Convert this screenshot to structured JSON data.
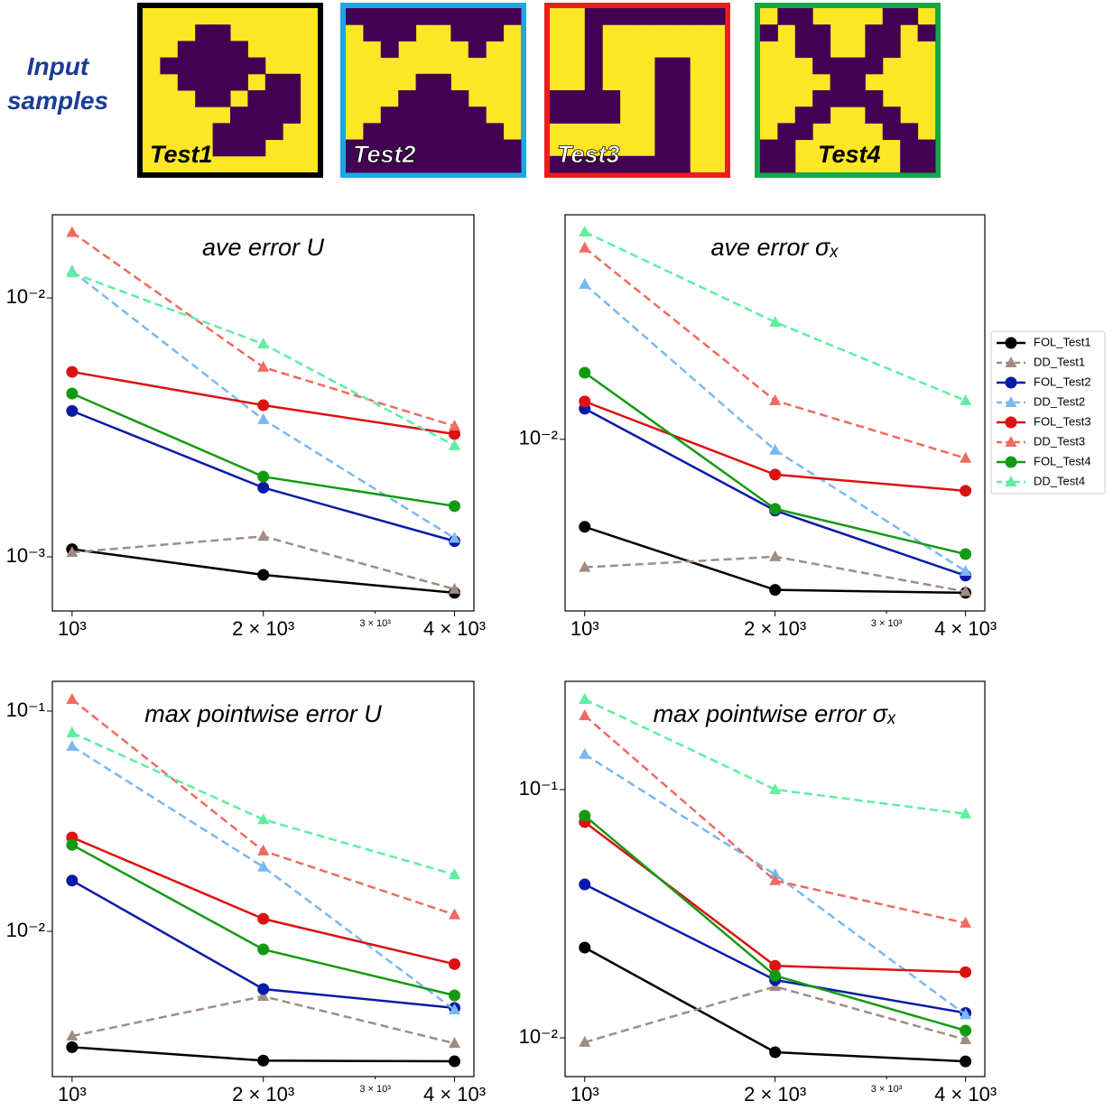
{
  "header": {
    "title": "Input samples",
    "samples": [
      "Test1",
      "Test2",
      "Test3",
      "Test4"
    ]
  },
  "chart_data": [
    {
      "type": "line",
      "title": "ave error U",
      "x": [
        1000,
        2000,
        4000
      ],
      "xscale": "log",
      "yscale": "log",
      "xlim": [
        931,
        4291
      ],
      "ylim": [
        0.000618,
        0.02094
      ],
      "xticks": [
        {
          "value": 1000,
          "label": "10³"
        },
        {
          "value": 2000,
          "label": "2 × 10³"
        },
        {
          "value": 4000,
          "label": "4 × 10³"
        }
      ],
      "xticks_minor": [
        {
          "value": 3000,
          "label": "3 × 10³"
        }
      ],
      "yticks": [
        {
          "value": 0.01,
          "label": "10⁻²"
        },
        {
          "value": 0.001,
          "label": "10⁻³"
        }
      ],
      "series": [
        {
          "color": "#000000",
          "linestyle": "solid",
          "marker": "circle",
          "values": [
            0.00107,
            0.000852,
            0.000726
          ]
        },
        {
          "color": "#a08c85",
          "linestyle": "dashed",
          "marker": "triangle",
          "values": [
            0.00104,
            0.0012,
            0.00075
          ]
        },
        {
          "color": "#0a1aa8",
          "linestyle": "solid",
          "marker": "circle",
          "values": [
            0.00366,
            0.00185,
            0.00115
          ]
        },
        {
          "color": "#7ab8f0",
          "linestyle": "dashed",
          "marker": "triangle",
          "values": [
            0.0127,
            0.00339,
            0.00118
          ]
        },
        {
          "color": "#dd1111",
          "linestyle": "solid",
          "marker": "circle",
          "values": [
            0.00518,
            0.00385,
            0.00298
          ]
        },
        {
          "color": "#f06a60",
          "linestyle": "dashed",
          "marker": "triangle",
          "values": [
            0.0179,
            0.0054,
            0.0032
          ]
        },
        {
          "color": "#139a13",
          "linestyle": "solid",
          "marker": "circle",
          "values": [
            0.00427,
            0.00204,
            0.00157
          ]
        },
        {
          "color": "#5cf0a0",
          "linestyle": "dashed",
          "marker": "triangle",
          "values": [
            0.0125,
            0.00664,
            0.00269
          ]
        }
      ]
    },
    {
      "type": "line",
      "title": "ave error σₓ",
      "x": [
        1000,
        2000,
        4000
      ],
      "xscale": "log",
      "yscale": "log",
      "xlim": [
        931,
        4291
      ],
      "ylim": [
        0.0024,
        0.0647
      ],
      "legend": "outside right",
      "xticks": [
        {
          "value": 1000,
          "label": "10³"
        },
        {
          "value": 2000,
          "label": "2 × 10³"
        },
        {
          "value": 4000,
          "label": "4 × 10³"
        }
      ],
      "xticks_minor": [
        {
          "value": 3000,
          "label": "3 × 10³"
        }
      ],
      "yticks": [
        {
          "value": 0.01,
          "label": "10⁻²"
        }
      ],
      "series": [
        {
          "name": "FOL_Test1",
          "color": "#000000",
          "linestyle": "solid",
          "marker": "circle",
          "values": [
            0.00483,
            0.00286,
            0.00279
          ]
        },
        {
          "name": "DD_Test1",
          "color": "#a08c85",
          "linestyle": "dashed",
          "marker": "triangle",
          "values": [
            0.00345,
            0.00377,
            0.00282
          ]
        },
        {
          "name": "FOL_Test2",
          "color": "#0a1aa8",
          "linestyle": "solid",
          "marker": "circle",
          "values": [
            0.0129,
            0.00553,
            0.00322
          ]
        },
        {
          "name": "DD_Test2",
          "color": "#7ab8f0",
          "linestyle": "dashed",
          "marker": "triangle",
          "values": [
            0.0363,
            0.00914,
            0.00334
          ]
        },
        {
          "name": "FOL_Test3",
          "color": "#dd1111",
          "linestyle": "solid",
          "marker": "circle",
          "values": [
            0.0137,
            0.00746,
            0.00652
          ]
        },
        {
          "name": "DD_Test3",
          "color": "#f06a60",
          "linestyle": "dashed",
          "marker": "triangle",
          "values": [
            0.0491,
            0.0138,
            0.00855
          ]
        },
        {
          "name": "FOL_Test4",
          "color": "#139a13",
          "linestyle": "solid",
          "marker": "circle",
          "values": [
            0.0174,
            0.00561,
            0.00385
          ]
        },
        {
          "name": "DD_Test4",
          "color": "#5cf0a0",
          "linestyle": "dashed",
          "marker": "triangle",
          "values": [
            0.0561,
            0.0265,
            0.0138
          ]
        }
      ]
    },
    {
      "type": "line",
      "title": "max pointwise error U",
      "x": [
        1000,
        2000,
        4000
      ],
      "xscale": "log",
      "yscale": "log",
      "xlim": [
        931,
        4291
      ],
      "ylim": [
        0.00219,
        0.1365
      ],
      "xticks": [
        {
          "value": 1000,
          "label": "10³"
        },
        {
          "value": 2000,
          "label": "2 × 10³"
        },
        {
          "value": 4000,
          "label": "4 × 10³"
        }
      ],
      "xticks_minor": [
        {
          "value": 3000,
          "label": "3 × 10³"
        }
      ],
      "yticks": [
        {
          "value": 0.1,
          "label": "10⁻¹"
        },
        {
          "value": 0.01,
          "label": "10⁻²"
        }
      ],
      "series": [
        {
          "color": "#000000",
          "linestyle": "solid",
          "marker": "circle",
          "values": [
            0.00298,
            0.00259,
            0.00257
          ]
        },
        {
          "color": "#a08c85",
          "linestyle": "dashed",
          "marker": "triangle",
          "values": [
            0.00335,
            0.00507,
            0.0031
          ]
        },
        {
          "color": "#0a1aa8",
          "linestyle": "solid",
          "marker": "circle",
          "values": [
            0.017,
            0.00547,
            0.00449
          ]
        },
        {
          "color": "#7ab8f0",
          "linestyle": "dashed",
          "marker": "triangle",
          "values": [
            0.0692,
            0.0196,
            0.0044
          ]
        },
        {
          "color": "#dd1111",
          "linestyle": "solid",
          "marker": "circle",
          "values": [
            0.0267,
            0.0114,
            0.0071
          ]
        },
        {
          "color": "#f06a60",
          "linestyle": "dashed",
          "marker": "triangle",
          "values": [
            0.113,
            0.0232,
            0.0119
          ]
        },
        {
          "color": "#139a13",
          "linestyle": "solid",
          "marker": "circle",
          "values": [
            0.0247,
            0.00828,
            0.00512
          ]
        },
        {
          "color": "#5cf0a0",
          "linestyle": "dashed",
          "marker": "triangle",
          "values": [
            0.0797,
            0.0322,
            0.0181
          ]
        }
      ]
    },
    {
      "type": "line",
      "title": "max pointwise error σₓ",
      "x": [
        1000,
        2000,
        4000
      ],
      "xscale": "log",
      "yscale": "log",
      "xlim": [
        931,
        4291
      ],
      "ylim": [
        0.00698,
        0.273
      ],
      "xticks": [
        {
          "value": 1000,
          "label": "10³"
        },
        {
          "value": 2000,
          "label": "2 × 10³"
        },
        {
          "value": 4000,
          "label": "4 × 10³"
        }
      ],
      "xticks_minor": [
        {
          "value": 3000,
          "label": "3 × 10³"
        }
      ],
      "yticks": [
        {
          "value": 0.1,
          "label": "10⁻¹"
        },
        {
          "value": 0.01,
          "label": "10⁻²"
        }
      ],
      "series": [
        {
          "color": "#000000",
          "linestyle": "solid",
          "marker": "circle",
          "values": [
            0.0231,
            0.00875,
            0.00804
          ]
        },
        {
          "color": "#a08c85",
          "linestyle": "dashed",
          "marker": "triangle",
          "values": [
            0.0096,
            0.0161,
            0.00984
          ]
        },
        {
          "color": "#0a1aa8",
          "linestyle": "solid",
          "marker": "circle",
          "values": [
            0.0415,
            0.0171,
            0.0126
          ]
        },
        {
          "color": "#7ab8f0",
          "linestyle": "dashed",
          "marker": "triangle",
          "values": [
            0.1387,
            0.0455,
            0.0124
          ]
        },
        {
          "color": "#dd1111",
          "linestyle": "solid",
          "marker": "circle",
          "values": [
            0.074,
            0.0195,
            0.0184
          ]
        },
        {
          "color": "#f06a60",
          "linestyle": "dashed",
          "marker": "triangle",
          "values": [
            0.1987,
            0.043,
            0.029
          ]
        },
        {
          "color": "#139a13",
          "linestyle": "solid",
          "marker": "circle",
          "values": [
            0.0785,
            0.0178,
            0.0107
          ]
        },
        {
          "color": "#5cf0a0",
          "linestyle": "dashed",
          "marker": "triangle",
          "values": [
            0.231,
            0.1,
            0.0798
          ]
        }
      ]
    }
  ]
}
